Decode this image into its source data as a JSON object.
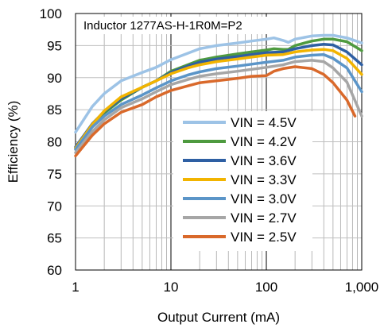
{
  "chart_data": {
    "type": "line",
    "annotation": "Inductor 1277AS-H-1R0M=P2",
    "xlabel": "Output Current (mA)",
    "ylabel": "Efficiency (%)",
    "xscale": "log",
    "xlim": [
      1,
      1000
    ],
    "ylim": [
      60,
      100
    ],
    "x_ticks": [
      1,
      10,
      100,
      1000
    ],
    "x_tick_labels": [
      "1",
      "10",
      "100",
      "1,000"
    ],
    "y_ticks": [
      60,
      65,
      70,
      75,
      80,
      85,
      90,
      95,
      100
    ],
    "y_tick_labels": [
      "60",
      "65",
      "70",
      "75",
      "80",
      "85",
      "90",
      "95",
      "100"
    ],
    "grid": "major and minor vertical, major horizontal",
    "legend_position": "bottom-right inside",
    "series": [
      {
        "name": "VIN = 4.5V",
        "color": "#9dc3e6",
        "points": [
          [
            1,
            81.5
          ],
          [
            1.5,
            85.5
          ],
          [
            2,
            87.5
          ],
          [
            3,
            89.5
          ],
          [
            5,
            90.8
          ],
          [
            7,
            91.6
          ],
          [
            10,
            92.8
          ],
          [
            15,
            93.8
          ],
          [
            20,
            94.5
          ],
          [
            30,
            95.0
          ],
          [
            50,
            95.4
          ],
          [
            70,
            95.7
          ],
          [
            100,
            96.0
          ],
          [
            120,
            96.2
          ],
          [
            150,
            95.8
          ],
          [
            170,
            95.5
          ],
          [
            200,
            96.0
          ],
          [
            300,
            96.5
          ],
          [
            400,
            96.6
          ],
          [
            500,
            96.6
          ],
          [
            700,
            96.2
          ],
          [
            1000,
            95.4
          ]
        ]
      },
      {
        "name": "VIN = 4.2V",
        "color": "#4e9a3f",
        "points": [
          [
            1,
            79.0
          ],
          [
            1.5,
            82.5
          ],
          [
            2,
            84.5
          ],
          [
            3,
            86.5
          ],
          [
            5,
            88.5
          ],
          [
            7,
            89.5
          ],
          [
            10,
            91.0
          ],
          [
            15,
            92.0
          ],
          [
            20,
            92.7
          ],
          [
            30,
            93.2
          ],
          [
            50,
            93.7
          ],
          [
            70,
            94.0
          ],
          [
            100,
            94.3
          ],
          [
            120,
            94.5
          ],
          [
            150,
            94.4
          ],
          [
            170,
            94.4
          ],
          [
            200,
            95.0
          ],
          [
            300,
            95.7
          ],
          [
            400,
            96.0
          ],
          [
            500,
            96.0
          ],
          [
            700,
            95.6
          ],
          [
            1000,
            94.2
          ]
        ]
      },
      {
        "name": "VIN = 3.6V",
        "color": "#2e5fa3",
        "points": [
          [
            1,
            79.2
          ],
          [
            1.5,
            82.8
          ],
          [
            2,
            84.7
          ],
          [
            3,
            86.7
          ],
          [
            5,
            88.5
          ],
          [
            7,
            89.5
          ],
          [
            10,
            90.8
          ],
          [
            15,
            91.8
          ],
          [
            20,
            92.4
          ],
          [
            30,
            92.9
          ],
          [
            50,
            93.3
          ],
          [
            70,
            93.6
          ],
          [
            100,
            93.9
          ],
          [
            150,
            94.0
          ],
          [
            200,
            94.5
          ],
          [
            300,
            95.0
          ],
          [
            400,
            95.2
          ],
          [
            500,
            95.1
          ],
          [
            700,
            94.0
          ],
          [
            1000,
            92.0
          ]
        ]
      },
      {
        "name": "VIN = 3.3V",
        "color": "#f2b400",
        "points": [
          [
            1,
            79.0
          ],
          [
            1.5,
            82.7
          ],
          [
            2,
            84.8
          ],
          [
            3,
            87.0
          ],
          [
            5,
            88.5
          ],
          [
            7,
            89.5
          ],
          [
            10,
            90.6
          ],
          [
            15,
            91.5
          ],
          [
            20,
            92.0
          ],
          [
            30,
            92.5
          ],
          [
            50,
            92.9
          ],
          [
            70,
            93.2
          ],
          [
            100,
            93.5
          ],
          [
            150,
            93.6
          ],
          [
            200,
            94.0
          ],
          [
            300,
            94.3
          ],
          [
            400,
            94.4
          ],
          [
            500,
            94.2
          ],
          [
            700,
            93.0
          ],
          [
            1000,
            90.5
          ]
        ]
      },
      {
        "name": "VIN = 3.0V",
        "color": "#5b95c8",
        "points": [
          [
            1,
            78.8
          ],
          [
            1.5,
            82.3
          ],
          [
            2,
            84.0
          ],
          [
            3,
            85.8
          ],
          [
            5,
            87.3
          ],
          [
            7,
            88.4
          ],
          [
            10,
            89.5
          ],
          [
            15,
            90.4
          ],
          [
            20,
            90.9
          ],
          [
            30,
            91.4
          ],
          [
            50,
            91.8
          ],
          [
            70,
            92.1
          ],
          [
            100,
            92.4
          ],
          [
            150,
            92.7
          ],
          [
            200,
            93.2
          ],
          [
            300,
            93.5
          ],
          [
            400,
            93.6
          ],
          [
            500,
            93.0
          ],
          [
            700,
            91.5
          ],
          [
            1000,
            87.8
          ]
        ]
      },
      {
        "name": "VIN = 2.7V",
        "color": "#a6a6a6",
        "points": [
          [
            1,
            78.3
          ],
          [
            1.5,
            81.6
          ],
          [
            2,
            83.4
          ],
          [
            3,
            85.3
          ],
          [
            5,
            86.7
          ],
          [
            7,
            87.8
          ],
          [
            10,
            88.9
          ],
          [
            15,
            89.7
          ],
          [
            20,
            90.2
          ],
          [
            30,
            90.6
          ],
          [
            50,
            91.0
          ],
          [
            70,
            91.3
          ],
          [
            100,
            91.6
          ],
          [
            150,
            92.0
          ],
          [
            200,
            92.5
          ],
          [
            300,
            92.7
          ],
          [
            400,
            92.5
          ],
          [
            500,
            91.5
          ],
          [
            700,
            89.3
          ],
          [
            1000,
            84.0
          ]
        ]
      },
      {
        "name": "VIN = 2.5V",
        "color": "#d9692b",
        "points": [
          [
            1,
            77.8
          ],
          [
            1.5,
            81.0
          ],
          [
            2,
            82.8
          ],
          [
            3,
            84.6
          ],
          [
            5,
            85.8
          ],
          [
            7,
            87.0
          ],
          [
            10,
            88.0
          ],
          [
            15,
            88.7
          ],
          [
            20,
            89.2
          ],
          [
            30,
            89.5
          ],
          [
            50,
            89.9
          ],
          [
            70,
            90.2
          ],
          [
            100,
            90.3
          ],
          [
            120,
            91.0
          ],
          [
            150,
            91.4
          ],
          [
            200,
            91.7
          ],
          [
            300,
            91.4
          ],
          [
            400,
            90.5
          ],
          [
            500,
            89.2
          ],
          [
            700,
            86.5
          ],
          [
            850,
            84.0
          ]
        ]
      }
    ]
  }
}
